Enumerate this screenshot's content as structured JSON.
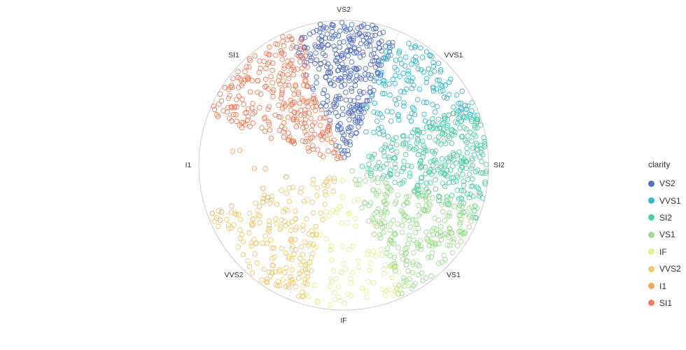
{
  "chart_data": {
    "type": "scatter",
    "coordinate_system": "polar",
    "legend_title": "clarity",
    "legend_placement": "right",
    "grid": true,
    "angle_categories": [
      "VS2",
      "VVS1",
      "SI2",
      "VS1",
      "IF",
      "VVS2",
      "I1",
      "SI1"
    ],
    "angle_start_degrees": 0,
    "angle_direction": "clockwise",
    "radius_domain": [
      0,
      1
    ],
    "series": [
      {
        "name": "VS2",
        "color": "#5470c6",
        "start": 337.5,
        "end": 22.5,
        "count": 330,
        "rmin": 0.02,
        "rmax": 0.99
      },
      {
        "name": "VVS1",
        "color": "#36b6c8",
        "start": 20,
        "end": 70,
        "count": 160,
        "rmin": 0.25,
        "rmax": 0.97
      },
      {
        "name": "SI2",
        "color": "#4fcda3",
        "start": 62,
        "end": 112,
        "count": 310,
        "rmin": 0.1,
        "rmax": 0.99
      },
      {
        "name": "VS1",
        "color": "#9ddc8d",
        "start": 107,
        "end": 157,
        "count": 260,
        "rmin": 0.05,
        "rmax": 0.98
      },
      {
        "name": "IF",
        "color": "#e2ef92",
        "start": 152,
        "end": 202,
        "count": 90,
        "rmin": 0.05,
        "rmax": 0.97
      },
      {
        "name": "VVS2",
        "color": "#eec96c",
        "start": 197,
        "end": 250,
        "count": 190,
        "rmin": 0.06,
        "rmax": 0.98
      },
      {
        "name": "I1",
        "color": "#f3a45f",
        "start": 245,
        "end": 292,
        "count": 12,
        "rmin": 0.35,
        "rmax": 0.98
      },
      {
        "name": "SI1",
        "color": "#f27d5a",
        "start": 290,
        "end": 342,
        "count": 290,
        "rmin": 0.03,
        "rmax": 0.99
      }
    ]
  }
}
